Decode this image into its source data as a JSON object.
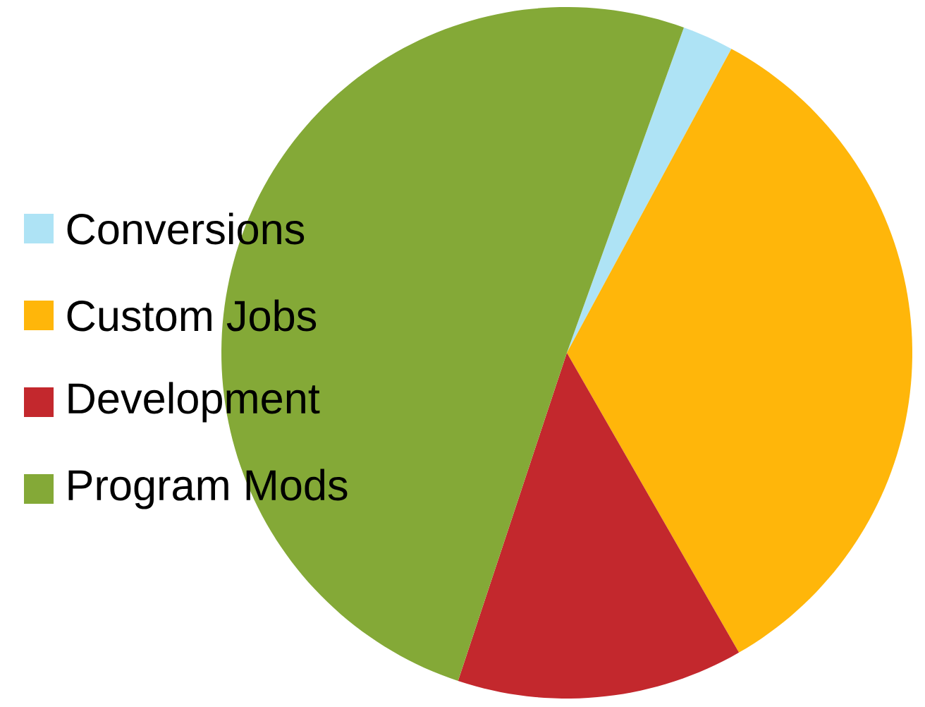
{
  "chart_data": {
    "type": "pie",
    "categories": [
      "Conversions",
      "Custom Jobs",
      "Development",
      "Program Mods"
    ],
    "values": [
      2.4,
      33.8,
      13.4,
      50.4
    ],
    "colors": [
      "#aee3f5",
      "#ffb60a",
      "#c3282d",
      "#84a937"
    ],
    "legend": "left"
  }
}
